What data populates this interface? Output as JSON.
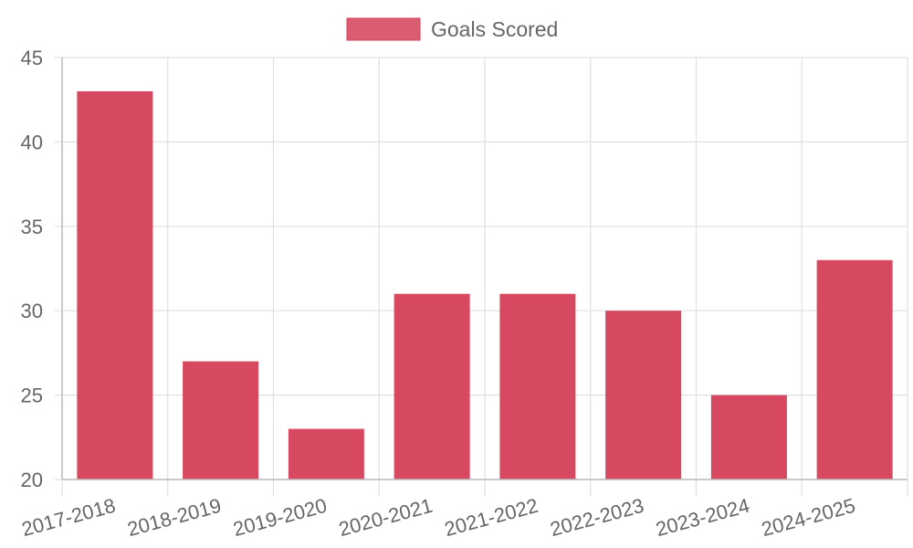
{
  "chart_data": {
    "type": "bar",
    "categories": [
      "2017-2018",
      "2018-2019",
      "2019-2020",
      "2020-2021",
      "2021-2022",
      "2022-2023",
      "2023-2024",
      "2024-2025"
    ],
    "series": [
      {
        "name": "Goals Scored",
        "values": [
          43,
          27,
          23,
          31,
          31,
          30,
          25,
          33
        ],
        "color": "#d43f57"
      }
    ],
    "xlabel": "",
    "ylabel": "",
    "ylim": [
      20,
      45
    ],
    "yticks": [
      20,
      25,
      30,
      35,
      40,
      45
    ],
    "grid": true,
    "legend_position": "top"
  }
}
